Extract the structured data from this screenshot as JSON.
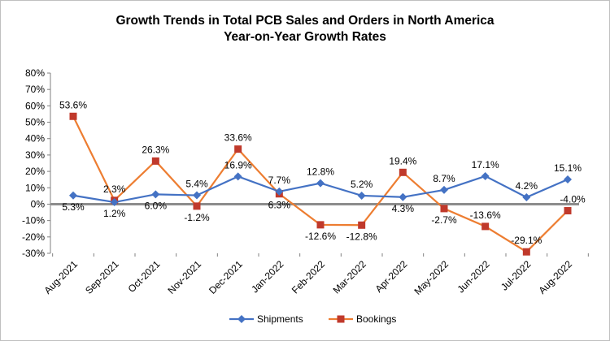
{
  "chart_data": {
    "type": "line",
    "title": "Growth Trends in Total PCB Sales and Orders in North America",
    "subtitle": "Year-on-Year Growth Rates",
    "xlabel": "",
    "ylabel": "",
    "categories": [
      "Aug-2021",
      "Sep-2021",
      "Oct-2021",
      "Nov-2021",
      "Dec-2021",
      "Jan-2022",
      "Feb-2022",
      "Mar-2022",
      "Apr-2022",
      "May-2022",
      "Jun-2022",
      "Jul-2022",
      "Aug-2022"
    ],
    "y_ticks": [
      "80%",
      "70%",
      "60%",
      "50%",
      "40%",
      "30%",
      "20%",
      "10%",
      "0%",
      "-10%",
      "-20%",
      "-30%"
    ],
    "ylim": [
      -30,
      80
    ],
    "grid": false,
    "legend": "bottom",
    "series": [
      {
        "name": "Shipments",
        "color": "#4472C4",
        "marker": "diamond",
        "values": [
          5.3,
          1.2,
          6.0,
          5.4,
          16.9,
          7.7,
          12.8,
          5.2,
          4.3,
          8.7,
          17.1,
          4.2,
          15.1
        ],
        "labels": [
          "5.3%",
          "1.2%",
          "6.0%",
          "5.4%",
          "16.9%",
          "7.7%",
          "12.8%",
          "5.2%",
          "4.3%",
          "8.7%",
          "17.1%",
          "4.2%",
          "15.1%"
        ]
      },
      {
        "name": "Bookings",
        "color": "#ED7D31",
        "marker_color": "#C0392B",
        "marker": "square",
        "values": [
          53.6,
          2.3,
          26.3,
          -1.2,
          33.6,
          6.3,
          -12.6,
          -12.8,
          19.4,
          -2.7,
          -13.6,
          -29.1,
          -4.0
        ],
        "labels": [
          "53.6%",
          "2.3%",
          "26.3%",
          "-1.2%",
          "33.6%",
          "6.3%",
          "-12.6%",
          "-12.8%",
          "19.4%",
          "-2.7%",
          "-13.6%",
          "-29.1%",
          "-4.0%"
        ]
      }
    ]
  }
}
